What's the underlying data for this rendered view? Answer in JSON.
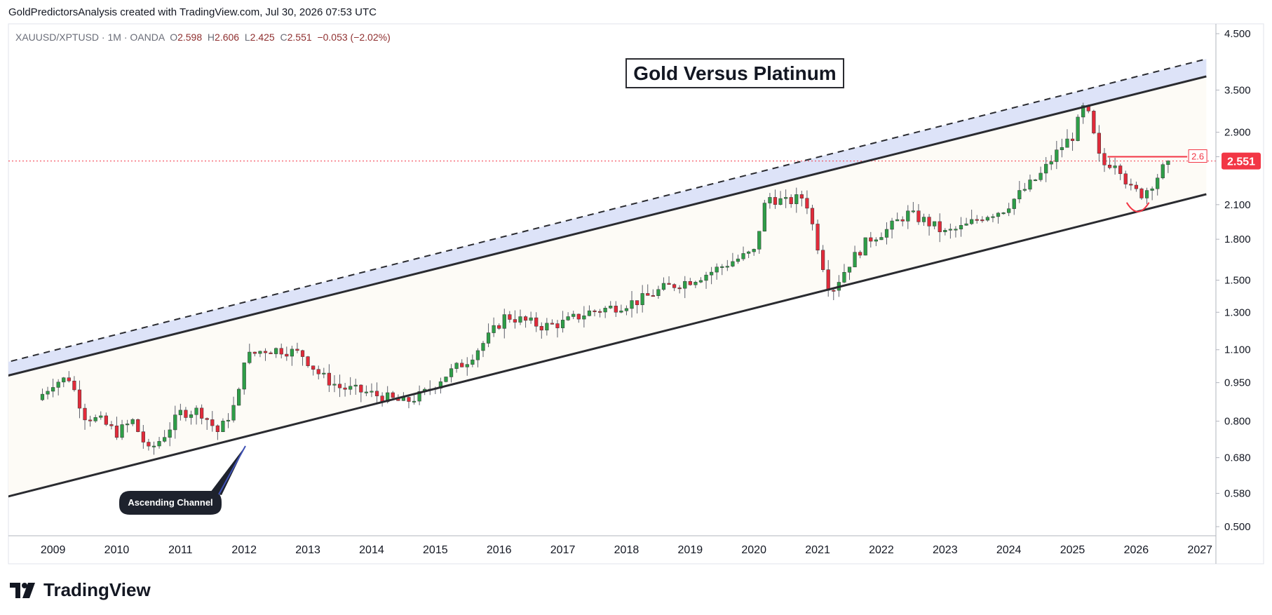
{
  "header": {
    "text": "GoldPredictorsAnalysis created with TradingView.com, Jul 30, 2026 07:53 UTC"
  },
  "symbol_line": {
    "symbol": "XAUUSD/XPTUSD",
    "sep1": "·",
    "interval": "1M",
    "sep2": "·",
    "broker": "OANDA",
    "o_label": "O",
    "o_val": "2.598",
    "h_label": "H",
    "h_val": "2.606",
    "l_label": "L",
    "l_val": "2.425",
    "c_label": "C",
    "c_val": "2.551",
    "change": "−0.053 (−2.02%)"
  },
  "footer": {
    "brand": "TradingView"
  },
  "colors": {
    "up": "#2e9e48",
    "down": "#e12b3a",
    "channel_fill": "#fdfbf6",
    "band_fill": "#dde3f8",
    "price_tag": "#f23645",
    "line": "#2a2b30"
  },
  "chart_data": {
    "type": "candlestick",
    "title": "Gold Versus Platinum",
    "symbol": "XAUUSD/XPTUSD",
    "interval": "1M",
    "y_scale": "log",
    "ylim": [
      0.5,
      4.7
    ],
    "y_ticks": [
      "4.500",
      "3.500",
      "2.900",
      "2.600",
      "2.100",
      "1.800",
      "1.500",
      "1.300",
      "1.100",
      "0.950",
      "0.800",
      "0.680",
      "0.580",
      "0.500"
    ],
    "x_ticks": [
      "2009",
      "2010",
      "2011",
      "2012",
      "2013",
      "2014",
      "2015",
      "2016",
      "2017",
      "2018",
      "2019",
      "2020",
      "2021",
      "2022",
      "2023",
      "2024",
      "2025",
      "2026",
      "2027"
    ],
    "last_price": "2.551",
    "resistance_label": "2.6",
    "annotations": [
      "Gold Versus Platinum",
      "Ascending Channel"
    ],
    "channel": {
      "lower": [
        [
          2008.0,
          0.56
        ],
        [
          2027.1,
          2.2
        ]
      ],
      "upper": [
        [
          2008.0,
          0.96
        ],
        [
          2027.1,
          3.72
        ]
      ],
      "upper_dashed": [
        [
          2008.0,
          1.02
        ],
        [
          2027.1,
          4.02
        ]
      ]
    },
    "series_close": [
      [
        2008.75,
        0.88
      ],
      [
        2009.0,
        0.95
      ],
      [
        2009.25,
        0.97
      ],
      [
        2009.5,
        0.82
      ],
      [
        2009.75,
        0.8
      ],
      [
        2010.0,
        0.76
      ],
      [
        2010.25,
        0.8
      ],
      [
        2010.5,
        0.7
      ],
      [
        2010.7,
        0.74
      ],
      [
        2011.0,
        0.83
      ],
      [
        2011.3,
        0.84
      ],
      [
        2011.6,
        0.76
      ],
      [
        2011.9,
        0.88
      ],
      [
        2012.0,
        1.06
      ],
      [
        2012.3,
        1.1
      ],
      [
        2012.6,
        1.1
      ],
      [
        2012.9,
        1.08
      ],
      [
        2013.2,
        0.98
      ],
      [
        2013.5,
        0.93
      ],
      [
        2013.9,
        0.91
      ],
      [
        2014.2,
        0.89
      ],
      [
        2014.5,
        0.87
      ],
      [
        2014.8,
        0.9
      ],
      [
        2015.1,
        0.97
      ],
      [
        2015.5,
        1.05
      ],
      [
        2015.8,
        1.15
      ],
      [
        2016.1,
        1.28
      ],
      [
        2016.4,
        1.25
      ],
      [
        2016.7,
        1.22
      ],
      [
        2017.0,
        1.24
      ],
      [
        2017.4,
        1.3
      ],
      [
        2017.8,
        1.33
      ],
      [
        2018.2,
        1.37
      ],
      [
        2018.6,
        1.45
      ],
      [
        2019.0,
        1.5
      ],
      [
        2019.3,
        1.55
      ],
      [
        2019.6,
        1.62
      ],
      [
        2020.0,
        1.7
      ],
      [
        2020.2,
        2.18
      ],
      [
        2020.5,
        2.12
      ],
      [
        2020.8,
        2.18
      ],
      [
        2021.0,
        1.75
      ],
      [
        2021.2,
        1.42
      ],
      [
        2021.5,
        1.62
      ],
      [
        2021.8,
        1.8
      ],
      [
        2022.1,
        1.88
      ],
      [
        2022.4,
        2.02
      ],
      [
        2022.7,
        1.95
      ],
      [
        2023.0,
        1.85
      ],
      [
        2023.3,
        1.9
      ],
      [
        2023.6,
        2.0
      ],
      [
        2023.9,
        2.05
      ],
      [
        2024.2,
        2.22
      ],
      [
        2024.5,
        2.4
      ],
      [
        2024.8,
        2.7
      ],
      [
        2025.0,
        2.85
      ],
      [
        2025.2,
        3.3
      ],
      [
        2025.45,
        2.5
      ],
      [
        2025.7,
        2.55
      ],
      [
        2025.9,
        2.25
      ],
      [
        2026.1,
        2.2
      ],
      [
        2026.3,
        2.35
      ],
      [
        2026.5,
        2.55
      ]
    ]
  }
}
